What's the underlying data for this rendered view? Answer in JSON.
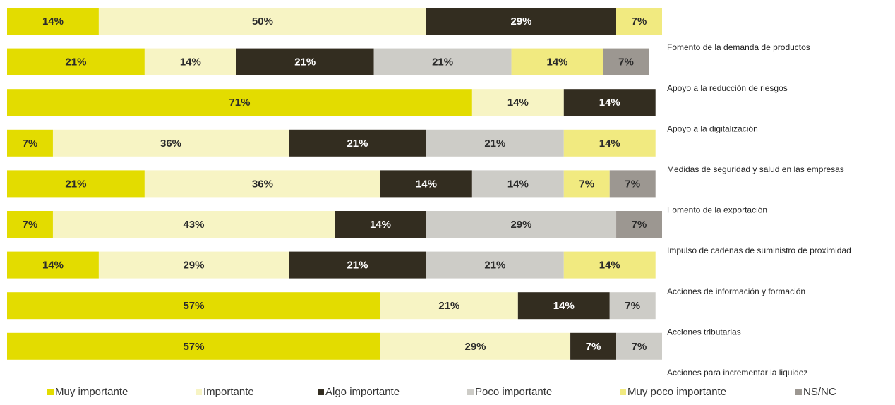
{
  "chart_data": {
    "type": "stacked-bar-horizontal",
    "categories": [
      "Fomento de la demanda de productos",
      "Apoyo a la reducción de riesgos",
      "Apoyo a la digitalización",
      "Medidas de seguridad y salud en las empresas",
      "Fomento de la exportación",
      "Impulso de cadenas de suministro de proximidad",
      "Acciones de información y formación",
      "Acciones tributarias",
      "Acciones para incrementar la liquidez"
    ],
    "xlim": [
      0,
      100
    ],
    "series": [
      {
        "name": "Muy importante",
        "color": "#e3dc00",
        "values": [
          14,
          21,
          71,
          7,
          21,
          7,
          14,
          57,
          57
        ],
        "value_labels": [
          "14%",
          "21%",
          "71%",
          "7%",
          "21%",
          "7%",
          "14%",
          "57%",
          "57%"
        ]
      },
      {
        "name": "Importante",
        "color": "#f7f4c4",
        "values": [
          50,
          14,
          14,
          36,
          36,
          43,
          29,
          21,
          29
        ],
        "value_labels": [
          "50%",
          "14%",
          "14%",
          "36%",
          "36%",
          "43%",
          "29%",
          "21%",
          "29%"
        ]
      },
      {
        "name": "Algo importante",
        "color": "#332d20",
        "values": [
          29,
          21,
          14,
          21,
          14,
          14,
          21,
          14,
          7
        ],
        "value_labels": [
          "29%",
          "21%",
          "14%",
          "21%",
          "14%",
          "14%",
          "21%",
          "14%",
          "7%"
        ]
      },
      {
        "name": "Poco importante",
        "color": "#cdccc7",
        "values": [
          null,
          21,
          null,
          21,
          14,
          29,
          21,
          7,
          7
        ],
        "value_labels": [
          null,
          "21%",
          null,
          "21%",
          "14%",
          "29%",
          "21%",
          "7%",
          "7%"
        ]
      },
      {
        "name": "Muy poco importante",
        "color": "#f1ea80",
        "values": [
          7,
          14,
          null,
          14,
          7,
          null,
          14,
          null,
          null
        ],
        "value_labels": [
          "7%",
          "14%",
          null,
          "14%",
          "7%",
          null,
          "14%",
          null,
          null
        ]
      },
      {
        "name": "NS/NC",
        "color": "#9c9791",
        "values": [
          null,
          7,
          null,
          null,
          7,
          7,
          null,
          null,
          null
        ],
        "value_labels": [
          null,
          "7%",
          null,
          null,
          "7%",
          "7%",
          null,
          null,
          null
        ]
      }
    ]
  }
}
